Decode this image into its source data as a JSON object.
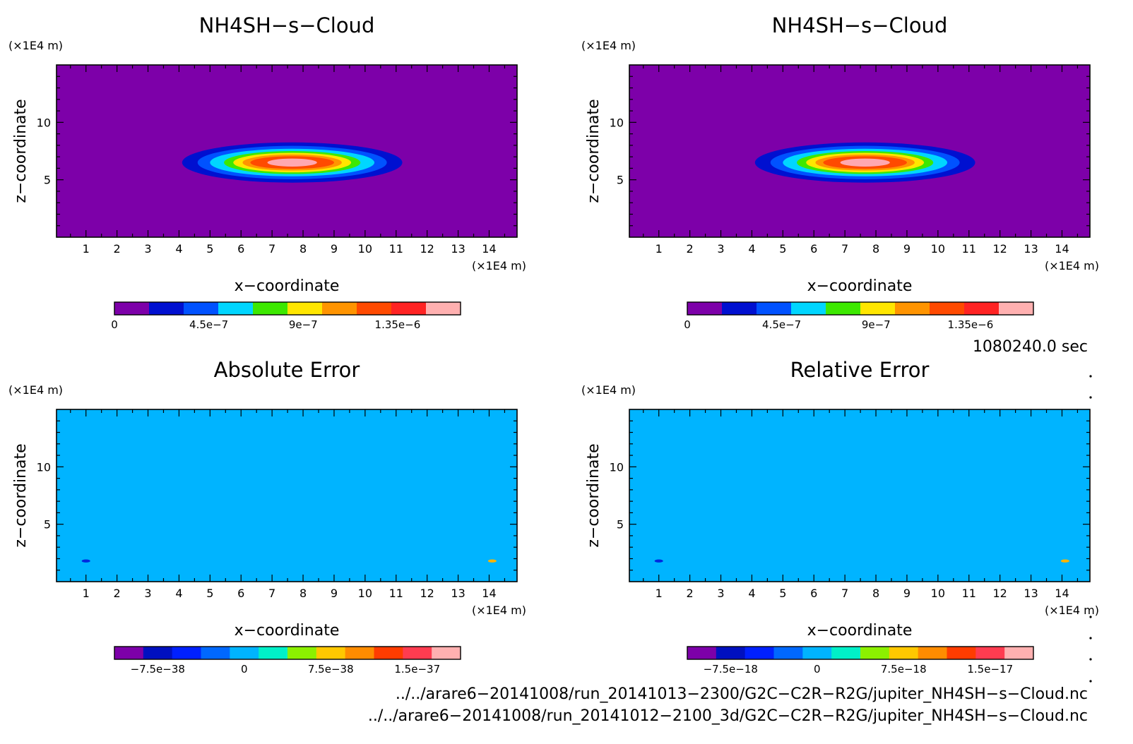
{
  "chart_data": [
    {
      "type": "heatmap",
      "title": "NH4SH−s−Cloud",
      "xlabel": "x−coordinate",
      "ylabel": "z−coordinate",
      "x_unit": "(×1E4 m)",
      "y_unit": "(×1E4 m)",
      "xlim": [
        0.05,
        14.9
      ],
      "ylim": [
        0,
        15
      ],
      "x_ticks": [
        "1",
        "2",
        "3",
        "4",
        "5",
        "6",
        "7",
        "8",
        "9",
        "10",
        "11",
        "12",
        "13",
        "14"
      ],
      "y_ticks": [
        "5",
        "10"
      ],
      "background_color": "#7d00a9",
      "contour_center": [
        7.65,
        6.5
      ],
      "contour_levels": [
        {
          "half_width": 3.55,
          "half_height": 1.75,
          "color": "#0010d0"
        },
        {
          "half_width": 3.05,
          "half_height": 1.45,
          "color": "#0052ff"
        },
        {
          "half_width": 2.65,
          "half_height": 1.2,
          "color": "#00d6ff"
        },
        {
          "half_width": 2.2,
          "half_height": 1.0,
          "color": "#3de800"
        },
        {
          "half_width": 1.9,
          "half_height": 0.85,
          "color": "#ffe600"
        },
        {
          "half_width": 1.6,
          "half_height": 0.7,
          "color": "#ff9400"
        },
        {
          "half_width": 1.35,
          "half_height": 0.55,
          "color": "#ff4a00"
        },
        {
          "half_width": 0.8,
          "half_height": 0.35,
          "color": "#ffa8b0"
        }
      ],
      "colorbar": {
        "colors": [
          "#7d00a9",
          "#0010d0",
          "#0052ff",
          "#00d6ff",
          "#3de800",
          "#ffe600",
          "#ff9400",
          "#ff4a00",
          "#ff2323",
          "#ffb0b0"
        ],
        "range": [
          0,
          1.65e-06
        ],
        "ticks": [
          {
            "value": 0,
            "label": "0"
          },
          {
            "value": 4.5e-07,
            "label": "4.5e−7"
          },
          {
            "value": 9e-07,
            "label": "9e−7"
          },
          {
            "value": 1.35e-06,
            "label": "1.35e−6"
          }
        ]
      }
    },
    {
      "type": "heatmap",
      "title": "NH4SH−s−Cloud",
      "xlabel": "x−coordinate",
      "ylabel": "z−coordinate",
      "x_unit": "(×1E4 m)",
      "y_unit": "(×1E4 m)",
      "xlim": [
        0.05,
        14.9
      ],
      "ylim": [
        0,
        15
      ],
      "x_ticks": [
        "1",
        "2",
        "3",
        "4",
        "5",
        "6",
        "7",
        "8",
        "9",
        "10",
        "11",
        "12",
        "13",
        "14"
      ],
      "y_ticks": [
        "5",
        "10"
      ],
      "background_color": "#7d00a9",
      "contour_center": [
        7.65,
        6.5
      ],
      "contour_levels": [
        {
          "half_width": 3.55,
          "half_height": 1.75,
          "color": "#0010d0"
        },
        {
          "half_width": 3.05,
          "half_height": 1.45,
          "color": "#0052ff"
        },
        {
          "half_width": 2.65,
          "half_height": 1.2,
          "color": "#00d6ff"
        },
        {
          "half_width": 2.2,
          "half_height": 1.0,
          "color": "#3de800"
        },
        {
          "half_width": 1.9,
          "half_height": 0.85,
          "color": "#ffe600"
        },
        {
          "half_width": 1.6,
          "half_height": 0.7,
          "color": "#ff9400"
        },
        {
          "half_width": 1.35,
          "half_height": 0.55,
          "color": "#ff4a00"
        },
        {
          "half_width": 0.8,
          "half_height": 0.35,
          "color": "#ffa8b0"
        }
      ],
      "colorbar": {
        "colors": [
          "#7d00a9",
          "#0010d0",
          "#0052ff",
          "#00d6ff",
          "#3de800",
          "#ffe600",
          "#ff9400",
          "#ff4a00",
          "#ff2323",
          "#ffb0b0"
        ],
        "range": [
          0,
          1.65e-06
        ],
        "ticks": [
          {
            "value": 0,
            "label": "0"
          },
          {
            "value": 4.5e-07,
            "label": "4.5e−7"
          },
          {
            "value": 9e-07,
            "label": "9e−7"
          },
          {
            "value": 1.35e-06,
            "label": "1.35e−6"
          }
        ]
      }
    },
    {
      "type": "heatmap",
      "title": "Absolute Error",
      "xlabel": "x−coordinate",
      "ylabel": "z−coordinate",
      "x_unit": "(×1E4 m)",
      "y_unit": "(×1E4 m)",
      "xlim": [
        0.05,
        14.9
      ],
      "ylim": [
        0,
        15
      ],
      "x_ticks": [
        "1",
        "2",
        "3",
        "4",
        "5",
        "6",
        "7",
        "8",
        "9",
        "10",
        "11",
        "12",
        "13",
        "14"
      ],
      "y_ticks": [
        "5",
        "10"
      ],
      "background_color": "#00b4ff",
      "spots": [
        {
          "x": 1.0,
          "z": 1.8,
          "color": "#0028e0"
        },
        {
          "x": 14.1,
          "z": 1.8,
          "color": "#ffb400"
        }
      ],
      "colorbar": {
        "colors": [
          "#7d00a9",
          "#0010c0",
          "#0020ff",
          "#0068ff",
          "#00b4ff",
          "#00f0c8",
          "#8cf000",
          "#ffc800",
          "#ff8c00",
          "#ff3c00",
          "#ff3c50",
          "#ffb0b0"
        ],
        "range": [
          -1.125e-37,
          1.875e-37
        ],
        "ticks": [
          {
            "value": -7.5e-38,
            "label": "−7.5e−38"
          },
          {
            "value": 0,
            "label": "0"
          },
          {
            "value": 7.5e-38,
            "label": "7.5e−38"
          },
          {
            "value": 1.5e-37,
            "label": "1.5e−37"
          }
        ]
      }
    },
    {
      "type": "heatmap",
      "title": "Relative Error",
      "xlabel": "x−coordinate",
      "ylabel": "z−coordinate",
      "x_unit": "(×1E4 m)",
      "y_unit": "(×1E4 m)",
      "xlim": [
        0.05,
        14.9
      ],
      "ylim": [
        0,
        15
      ],
      "x_ticks": [
        "1",
        "2",
        "3",
        "4",
        "5",
        "6",
        "7",
        "8",
        "9",
        "10",
        "11",
        "12",
        "13",
        "14"
      ],
      "y_ticks": [
        "5",
        "10"
      ],
      "background_color": "#00b4ff",
      "spots": [
        {
          "x": 1.0,
          "z": 1.8,
          "color": "#0028e0"
        },
        {
          "x": 14.1,
          "z": 1.8,
          "color": "#ffb400"
        }
      ],
      "colorbar": {
        "colors": [
          "#7d00a9",
          "#0010c0",
          "#0020ff",
          "#0068ff",
          "#00b4ff",
          "#00f0c8",
          "#8cf000",
          "#ffc800",
          "#ff8c00",
          "#ff3c00",
          "#ff3c50",
          "#ffb0b0"
        ],
        "range": [
          -1.125e-17,
          1.875e-17
        ],
        "ticks": [
          {
            "value": -7.5e-18,
            "label": "−7.5e−18"
          },
          {
            "value": 0,
            "label": "0"
          },
          {
            "value": 7.5e-18,
            "label": "7.5e−18"
          },
          {
            "value": 1.5e-17,
            "label": "1.5e−17"
          }
        ]
      }
    }
  ],
  "time_label": "1080240.0 sec",
  "file_paths": [
    "../../arare6−20141008/run_20141013−2300/G2C−C2R−R2G/jupiter_NH4SH−s−Cloud.nc",
    "../../arare6−20141008/run_20141012−2100_3d/G2C−C2R−R2G/jupiter_NH4SH−s−Cloud.nc"
  ]
}
